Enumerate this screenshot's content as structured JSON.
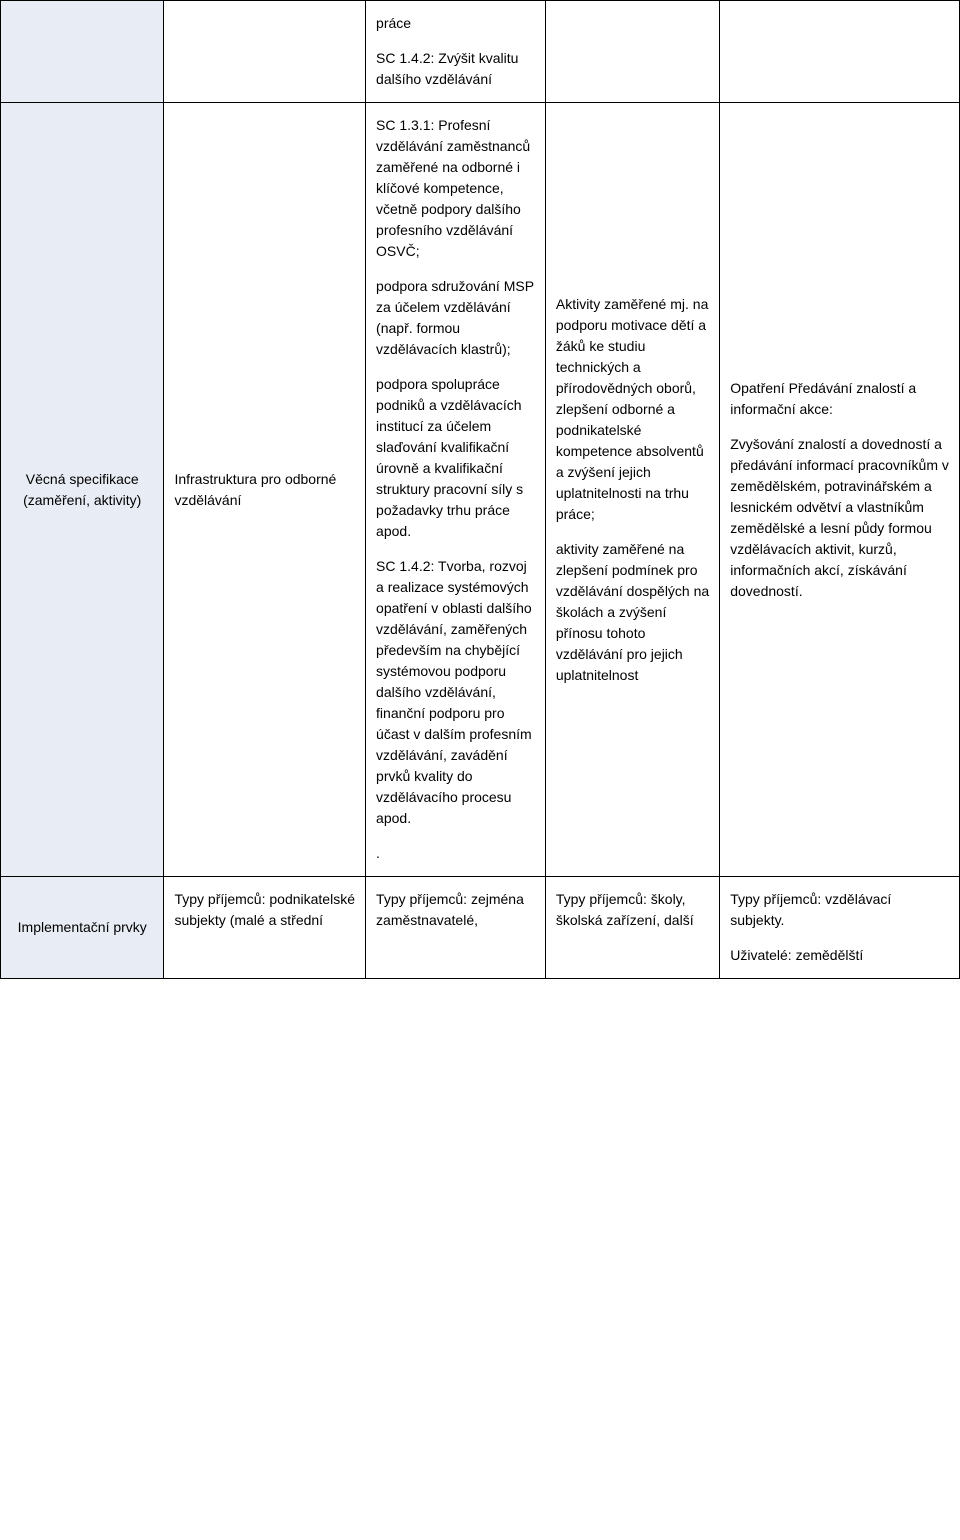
{
  "row1": {
    "col3_p1": "práce",
    "col3_p2": "SC 1.4.2: Zvýšit kvalitu dalšího vzdělávání"
  },
  "row2": {
    "label": "Věcná specifikace (zaměření, aktivity)",
    "col2": "Infrastruktura pro odborné vzdělávání",
    "col3_p1": "SC 1.3.1: Profesní vzdělávání zaměstnanců zaměřené na odborné i klíčové kompetence, včetně podpory dalšího profesního vzdělávání OSVČ;",
    "col3_p2": "podpora sdružování MSP za účelem vzdělávání (např. formou vzdělávacích klastrů);",
    "col3_p3": "podpora spolupráce podniků a vzdělávacích institucí za účelem slaďování kvalifikační úrovně a kvalifikační struktury pracovní síly s požadavky trhu práce apod.",
    "col3_p4": "SC 1.4.2: Tvorba, rozvoj a realizace systémových opatření v oblasti dalšího vzdělávání, zaměřených především na chybějící systémovou podporu dalšího vzdělávání, finanční podporu pro účast v dalším profesním vzdělávání, zavádění prvků kvality do vzdělávacího procesu apod.",
    "col3_p5": ".",
    "col4_p1": "Aktivity zaměřené mj. na podporu motivace dětí a žáků ke studiu technických a přírodovědných oborů, zlepšení odborné a podnikatelské kompetence absolventů a zvýšení jejich uplatnitelnosti na trhu práce;",
    "col4_p2": "aktivity zaměřené na zlepšení podmínek pro vzdělávání dospělých na školách a zvýšení přínosu tohoto vzdělávání pro jejich uplatnitelnost",
    "col5_p1": "Opatření Předávání znalostí a informační akce:",
    "col5_p2": "Zvyšování znalostí a dovedností a předávání informací pracovníkům v zemědělském, potravinářském a lesnickém odvětví a vlastníkům zemědělské a lesní půdy formou vzdělávacích aktivit, kurzů, informačních akcí, získávání dovedností."
  },
  "row3": {
    "label": "Implementační prvky",
    "col2": "Typy příjemců: podnikatelské subjekty (malé a střední",
    "col3": "Typy příjemců: zejména zaměstnavatelé,",
    "col4": "Typy příjemců: školy, školská zařízení, další",
    "col5_p1": "Typy příjemců: vzdělávací subjekty.",
    "col5_p2": "Uživatelé: zemědělští"
  }
}
